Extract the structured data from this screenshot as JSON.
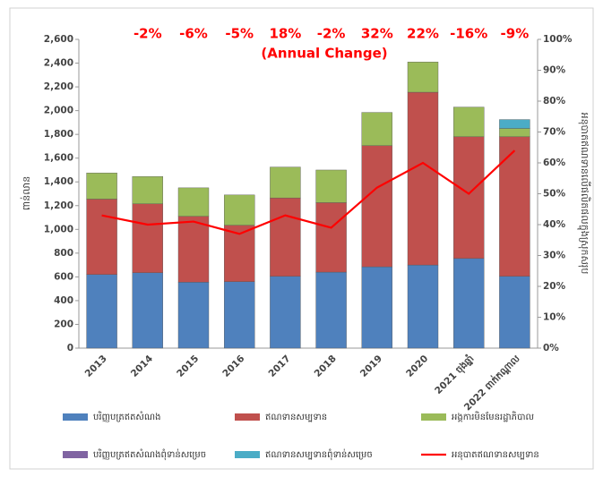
{
  "chart_data": {
    "type": "bar",
    "stacked": true,
    "ylabel": "ពាន់លាន",
    "y2label": "អនុបាតឥណទានលើផលិតផលក្នុងស្រុកសរុប",
    "annotation_title": "(Annual Change)",
    "annotations": [
      "-2%",
      "-6%",
      "-5%",
      "18%",
      "-2%",
      "32%",
      "22%",
      "-16%",
      "-9%"
    ],
    "categories": [
      "2013",
      "2014",
      "2015",
      "2016",
      "2017",
      "2018",
      "2019",
      "2020",
      "2021 ចុងឆ្នាំ",
      "2022 ពាក់កណ្ដាល"
    ],
    "series": [
      {
        "name": "បរិញ្ញបត្រឥតសំណង",
        "color": "#4f81bd",
        "values": [
          620,
          635,
          555,
          560,
          605,
          640,
          685,
          700,
          755,
          605
        ]
      },
      {
        "name": "ឥណទានសម្បទាន",
        "color": "#c0504d",
        "values": [
          635,
          580,
          555,
          475,
          660,
          585,
          1020,
          1455,
          1025,
          1175
        ]
      },
      {
        "name": "អង្គការមិនមែនរដ្ឋាភិបាល",
        "color": "#9bbb59",
        "values": [
          220,
          230,
          240,
          255,
          260,
          275,
          280,
          255,
          250,
          70
        ]
      },
      {
        "name": "បរិញ្ញបត្រឥតសំណងពុំទាន់សម្រេច",
        "color": "#8064a2",
        "values": [
          0,
          0,
          0,
          0,
          0,
          0,
          0,
          0,
          0,
          0
        ]
      },
      {
        "name": "ឥណទានសម្បទានពុំទាន់សម្រេច",
        "color": "#4bacc6",
        "values": [
          0,
          0,
          0,
          0,
          0,
          0,
          0,
          0,
          0,
          75
        ]
      },
      {
        "name": "អនុបាតឥណទានសម្បទាន",
        "color": "#ff0000",
        "type": "line",
        "axis": "y2",
        "values": [
          43,
          40,
          41,
          37,
          43,
          39,
          52,
          60,
          50,
          64
        ]
      }
    ],
    "ylim": [
      0,
      2600
    ],
    "yticks": [
      0,
      200,
      400,
      600,
      800,
      {
        "value": 1000,
        "label": "1,000"
      },
      {
        "value": 1200,
        "label": "1,200"
      },
      {
        "value": 1400,
        "label": "1,400"
      },
      {
        "value": 1600,
        "label": "1,600"
      },
      {
        "value": 1800,
        "label": "1,800"
      },
      {
        "value": 2000,
        "label": "2,000"
      },
      {
        "value": 2200,
        "label": "2,200"
      },
      {
        "value": 2400,
        "label": "2,400"
      },
      {
        "value": 2600,
        "label": "2,600"
      }
    ],
    "y2lim": [
      0,
      100
    ],
    "y2ticks": [
      {
        "value": 0,
        "label": "0%"
      },
      {
        "value": 10,
        "label": "10%"
      },
      {
        "value": 20,
        "label": "20%"
      },
      {
        "value": 30,
        "label": "30%"
      },
      {
        "value": 40,
        "label": "40%"
      },
      {
        "value": 50,
        "label": "50%"
      },
      {
        "value": 60,
        "label": "60%"
      },
      {
        "value": 70,
        "label": "70%"
      },
      {
        "value": 80,
        "label": "80%"
      },
      {
        "value": 90,
        "label": "90%"
      },
      {
        "value": 100,
        "label": "100%"
      }
    ],
    "legend": "bottom"
  }
}
